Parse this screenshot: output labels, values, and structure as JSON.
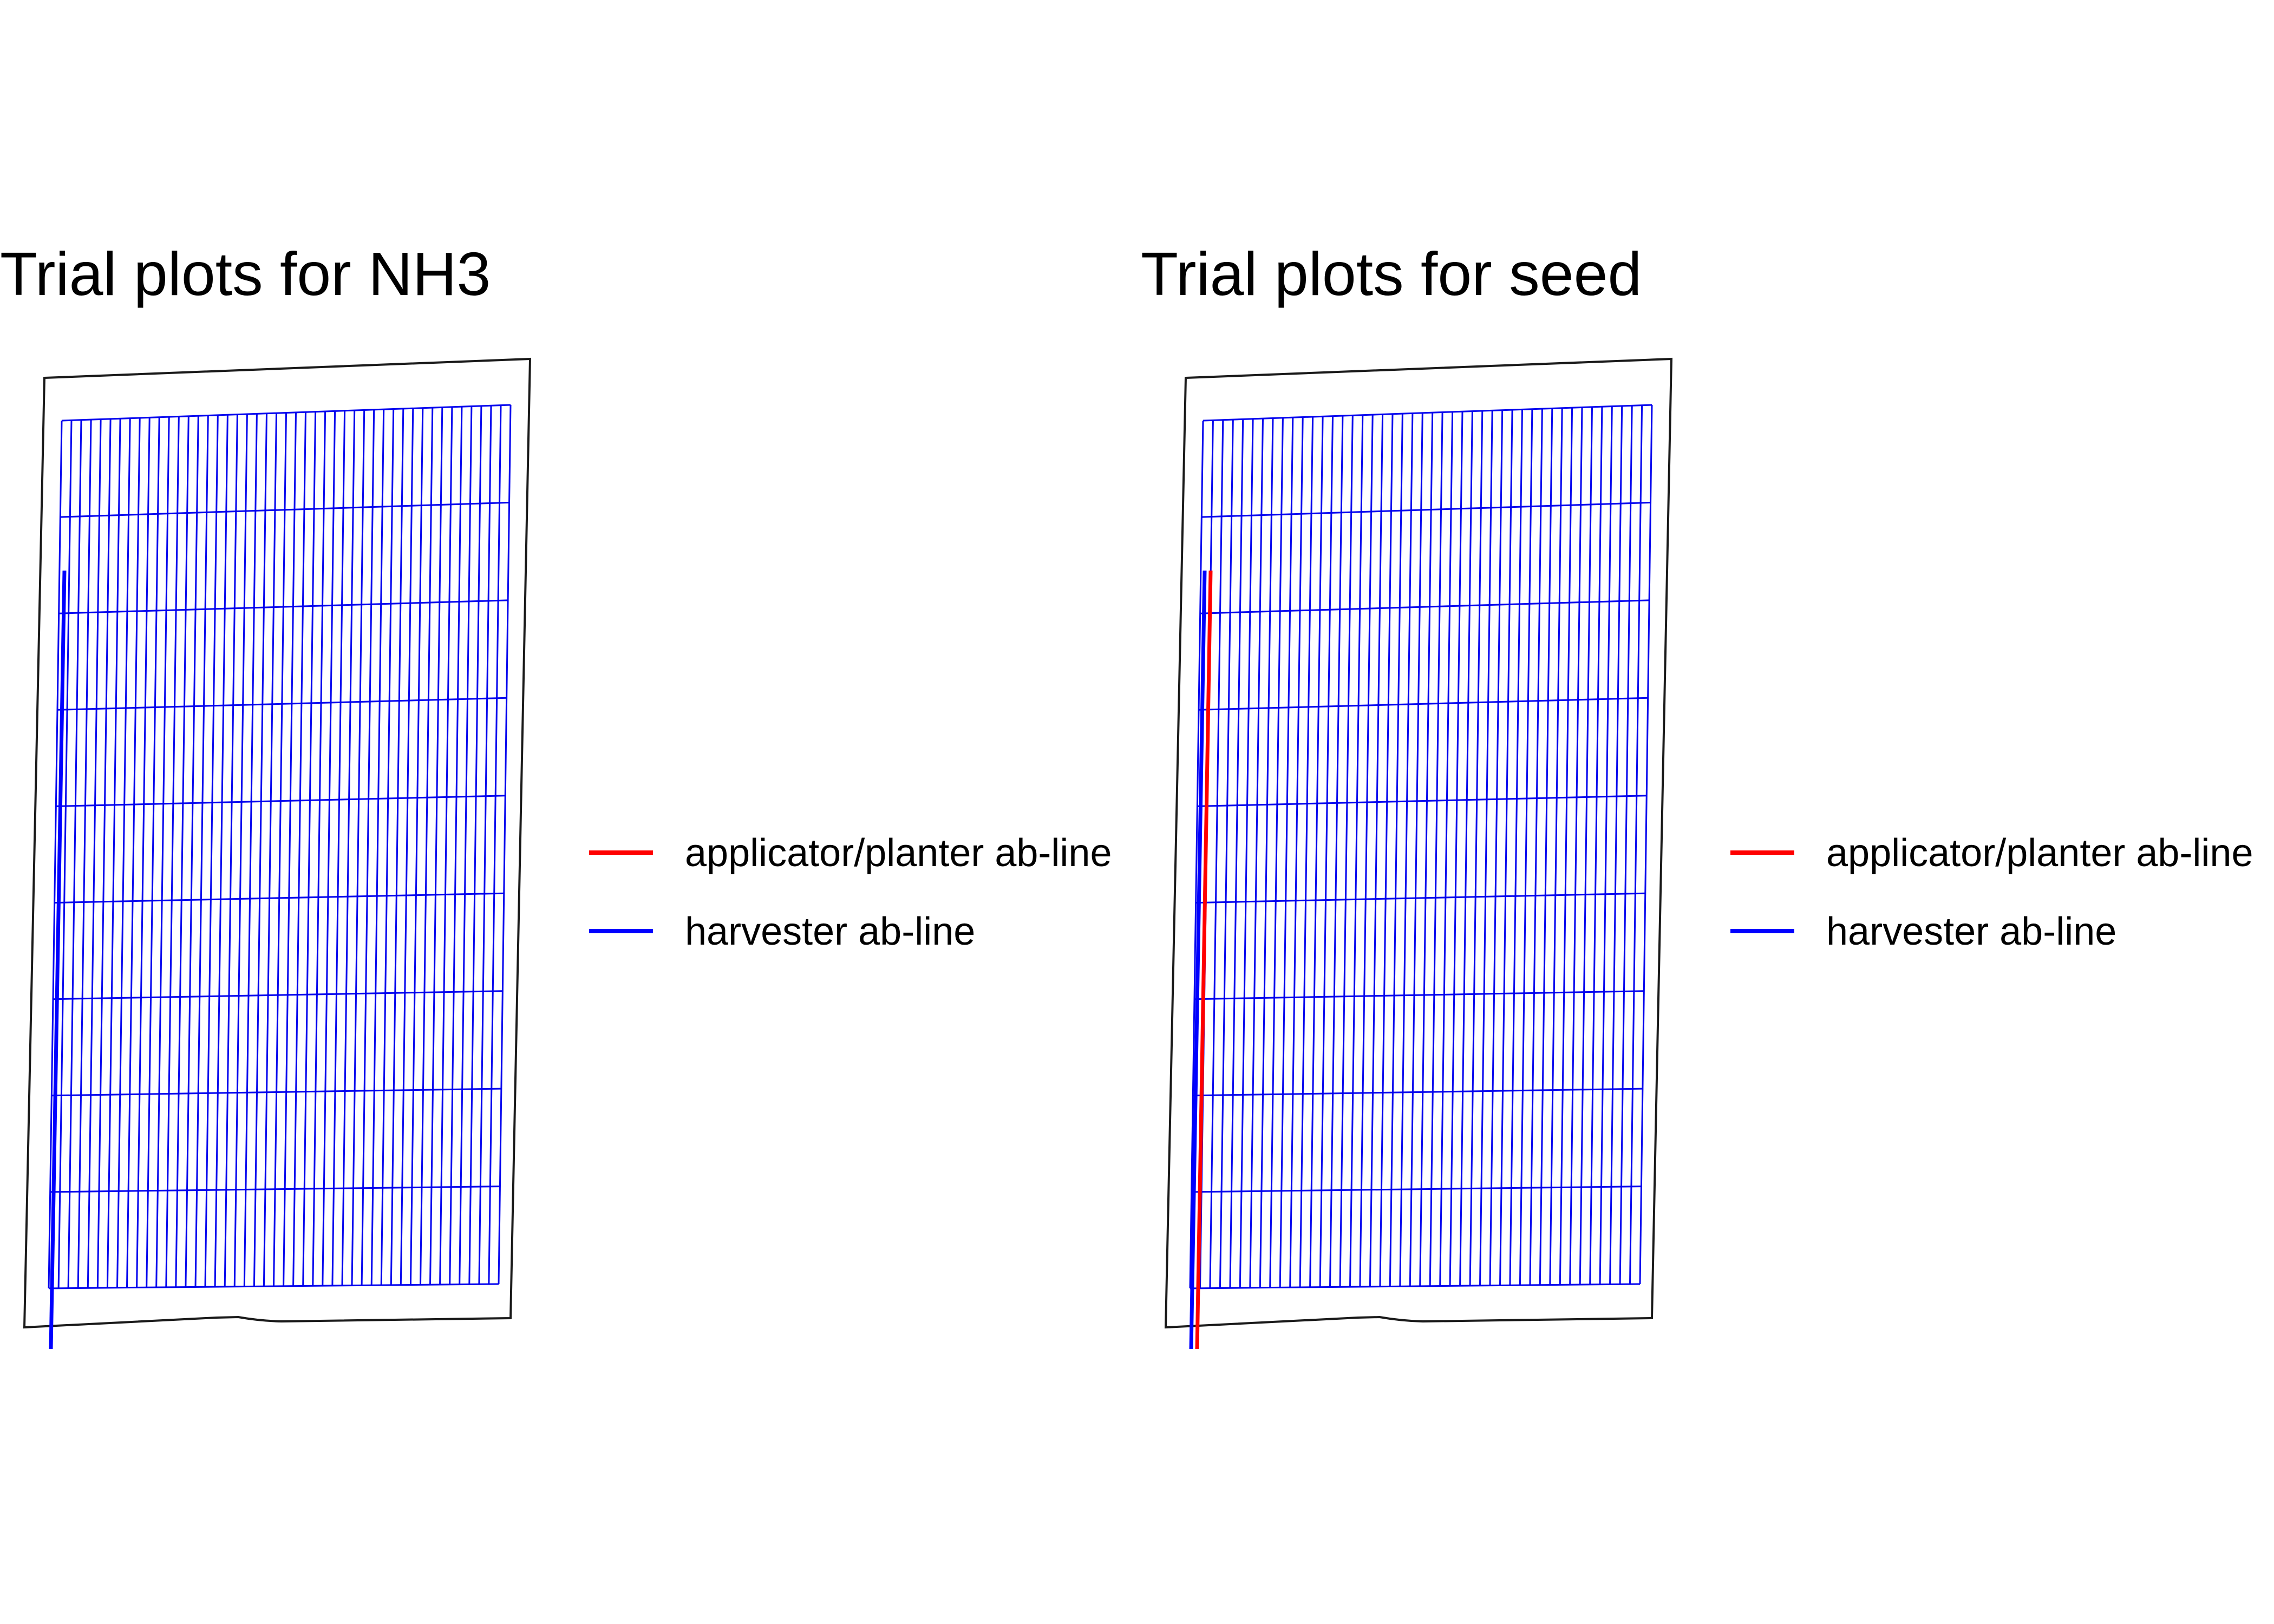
{
  "colors": {
    "background": "#ffffff",
    "boundary": "#1a1a1a",
    "plot_grid": "#0000ee",
    "applicator_line": "#ff0000",
    "harvester_line": "#0000ff"
  },
  "panels": [
    {
      "title": "Trial plots for NH3",
      "vertical_plot_strips": 46,
      "plot_rows": 9,
      "lines_shown": [
        "harvester"
      ],
      "legend": {
        "items": [
          {
            "label": "applicator/planter ab-line",
            "color": "#ff0000"
          },
          {
            "label": "harvester ab-line",
            "color": "#0000ff"
          }
        ]
      }
    },
    {
      "title": "Trial plots for seed",
      "vertical_plot_strips": 45,
      "plot_rows": 9,
      "lines_shown": [
        "harvester",
        "applicator"
      ],
      "legend": {
        "items": [
          {
            "label": "applicator/planter ab-line",
            "color": "#ff0000"
          },
          {
            "label": "harvester ab-line",
            "color": "#0000ff"
          }
        ]
      }
    }
  ]
}
